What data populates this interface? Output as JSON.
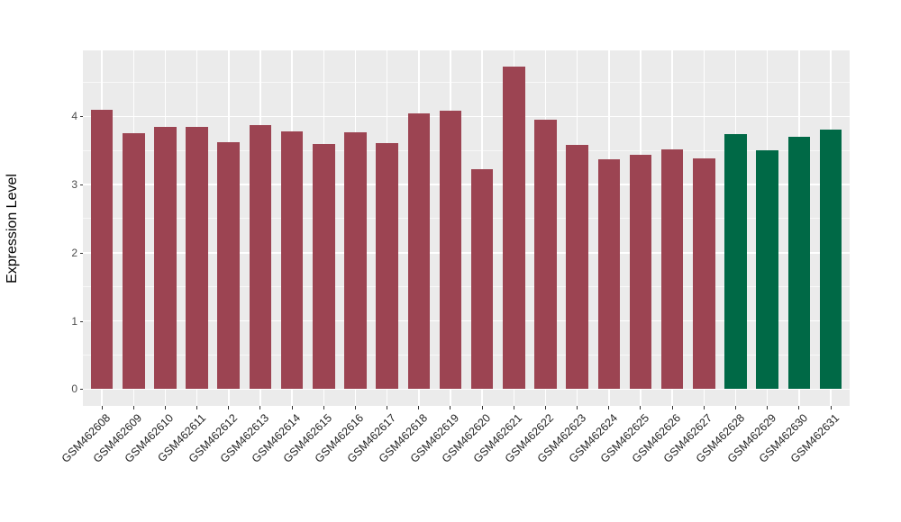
{
  "chart_data": {
    "type": "bar",
    "title": "",
    "ylabel": "Expression Level",
    "xlabel": "",
    "categories": [
      "GSM462608",
      "GSM462609",
      "GSM462610",
      "GSM462611",
      "GSM462612",
      "GSM462613",
      "GSM462614",
      "GSM462615",
      "GSM462616",
      "GSM462617",
      "GSM462618",
      "GSM462619",
      "GSM462620",
      "GSM462621",
      "GSM462622",
      "GSM462623",
      "GSM462624",
      "GSM462625",
      "GSM462626",
      "GSM462627",
      "GSM462628",
      "GSM462629",
      "GSM462630",
      "GSM462631"
    ],
    "values": [
      4.1,
      3.75,
      3.85,
      3.84,
      3.62,
      3.87,
      3.78,
      3.59,
      3.76,
      3.61,
      4.04,
      4.08,
      3.23,
      4.73,
      3.95,
      3.58,
      3.37,
      3.43,
      3.51,
      3.38,
      3.74,
      3.5,
      3.7,
      3.8
    ],
    "bar_groups": [
      "maroon",
      "maroon",
      "maroon",
      "maroon",
      "maroon",
      "maroon",
      "maroon",
      "maroon",
      "maroon",
      "maroon",
      "maroon",
      "maroon",
      "maroon",
      "maroon",
      "maroon",
      "maroon",
      "maroon",
      "maroon",
      "maroon",
      "maroon",
      "green",
      "green",
      "green",
      "green"
    ],
    "group_colors": {
      "maroon": "#9C4452",
      "green": "#006946"
    },
    "ylim": [
      -0.24,
      4.97
    ],
    "yticks": [
      0,
      1,
      2,
      3,
      4
    ],
    "yticks_minor": [
      0.5,
      1.5,
      2.5,
      3.5,
      4.5
    ],
    "grid": true,
    "legend_position": "none",
    "style": {
      "panel_background": "#EBEBEB",
      "gridline_color": "#FFFFFF",
      "tick_mark_color": "#333333",
      "y_axis_text_color": "#4D4D4D",
      "x_axis_text_color": "#1F1F1F",
      "figure_background": "#FFFFFF"
    }
  }
}
